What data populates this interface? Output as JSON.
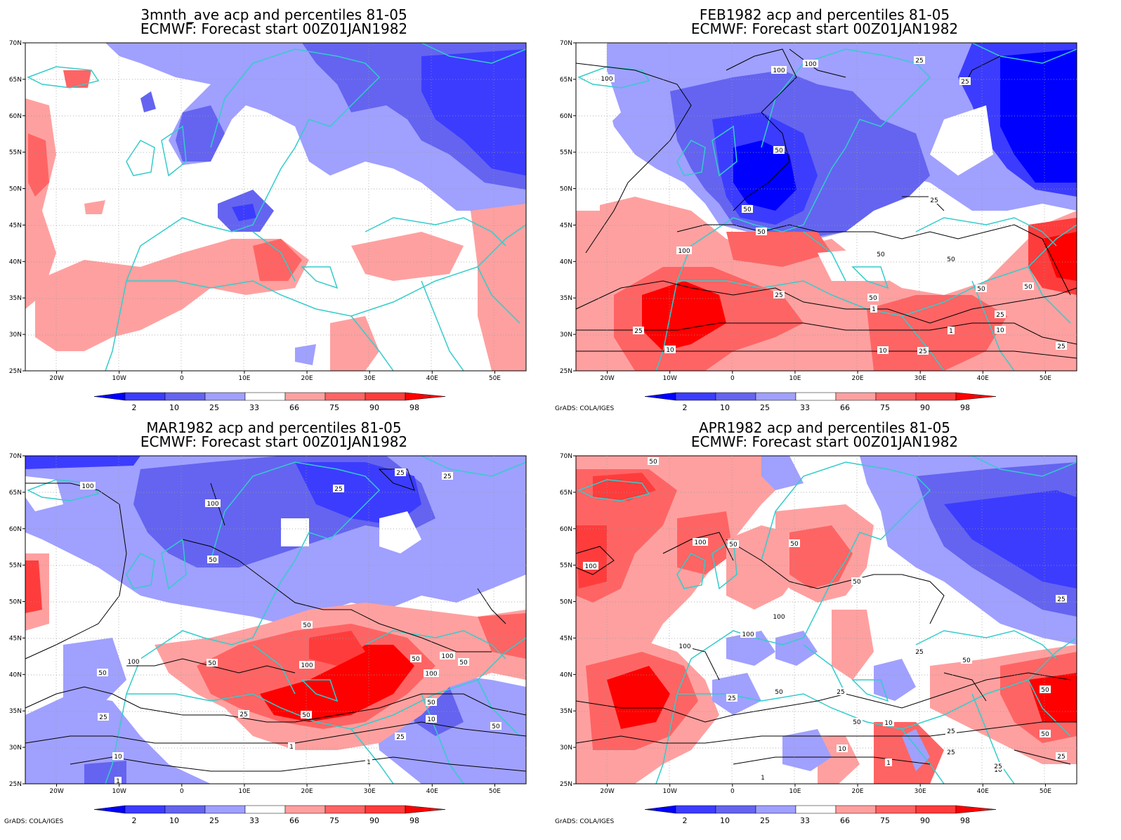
{
  "panels": [
    {
      "id": "p1",
      "title1": "3mnth_ave acp and percentiles 81-05",
      "title2": "ECMWF: Forecast start 00Z01JAN1982",
      "credit": "",
      "contour_labels": []
    },
    {
      "id": "p2",
      "title1": "FEB1982 acp and percentiles 81-05",
      "title2": "ECMWF: Forecast start 00Z01JAN1982",
      "credit": "GrADS: COLA/IGES",
      "contour_labels": [
        "100",
        "100",
        "100",
        "25",
        "25",
        "50",
        "50",
        "25",
        "50",
        "100",
        "50",
        "50",
        "50",
        "25",
        "10",
        "25",
        "50",
        "50",
        "10",
        "10",
        "25",
        "25",
        "1",
        "1",
        "25"
      ]
    },
    {
      "id": "p3",
      "title1": "MAR1982 acp and percentiles 81-05",
      "title2": "ECMWF: Forecast start 00Z01JAN1982",
      "credit": "GrADS: COLA/IGES",
      "contour_labels": [
        "100",
        "100",
        "25",
        "25",
        "25",
        "50",
        "50",
        "100",
        "50",
        "50",
        "100",
        "50",
        "25",
        "50",
        "100",
        "50",
        "100",
        "50",
        "10",
        "25",
        "10",
        "1",
        "1",
        "1",
        "25",
        "50"
      ]
    },
    {
      "id": "p4",
      "title1": "APR1982 acp and percentiles 81-05",
      "title2": "ECMWF: Forecast start 00Z01JAN1982",
      "credit": "GrADS: COLA/IGES",
      "contour_labels": [
        "50",
        "100",
        "100",
        "50",
        "50",
        "50",
        "100",
        "100",
        "100",
        "25",
        "50",
        "25",
        "50",
        "25",
        "10",
        "10",
        "50",
        "25",
        "1",
        "1",
        "25",
        "50",
        "25",
        "10",
        "25",
        "25",
        "50"
      ]
    }
  ],
  "axes": {
    "x_ticks": [
      "20W",
      "10W",
      "0",
      "10E",
      "20E",
      "30E",
      "40E",
      "50E"
    ],
    "y_ticks": [
      "70N",
      "65N",
      "60N",
      "55N",
      "50N",
      "45N",
      "40N",
      "35N",
      "30N",
      "25N"
    ],
    "lon_range": [
      -25,
      55
    ],
    "lat_range": [
      25,
      70
    ]
  },
  "colorbar": {
    "labels": [
      "2",
      "10",
      "25",
      "33",
      "66",
      "75",
      "90",
      "98"
    ],
    "colors": [
      "#0000ff",
      "#3c3cff",
      "#6464f0",
      "#a0a0ff",
      "#ffffff",
      "#ffa0a0",
      "#ff6464",
      "#ff3c3c",
      "#ff0000"
    ]
  },
  "colors": {
    "coast": "#33cccc",
    "contour": "#000000"
  }
}
